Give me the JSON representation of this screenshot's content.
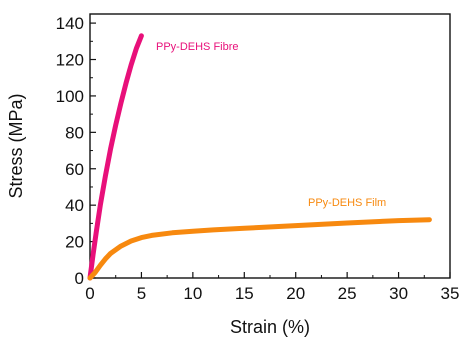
{
  "chart_data": {
    "type": "line",
    "title": "",
    "xlabel": "Strain (%)",
    "ylabel": "Stress (MPa)",
    "xlim": [
      0,
      35
    ],
    "ylim": [
      0,
      145
    ],
    "xticks": [
      0,
      5,
      10,
      15,
      20,
      25,
      30,
      35
    ],
    "yticks": [
      0,
      20,
      40,
      60,
      80,
      100,
      120,
      140
    ],
    "grid": false,
    "legend": "inline labels next to curves",
    "series": [
      {
        "name": "PPy-DEHS Fibre",
        "color": "#e8107a",
        "x": [
          0,
          0.3,
          0.6,
          1.0,
          1.5,
          2.0,
          2.5,
          3.0,
          3.5,
          4.0,
          4.5,
          5.0
        ],
        "y": [
          0,
          13,
          25,
          40,
          56,
          71,
          84,
          96,
          107,
          117,
          126,
          133
        ]
      },
      {
        "name": "PPy-DEHS Film",
        "color": "#f7890f",
        "x": [
          0,
          0.5,
          1,
          1.5,
          2,
          3,
          4,
          5,
          6,
          8,
          10,
          12,
          15,
          20,
          25,
          30,
          33
        ],
        "y": [
          0,
          3,
          7,
          10.5,
          13.5,
          17.5,
          20.3,
          22.2,
          23.4,
          24.8,
          25.7,
          26.4,
          27.3,
          28.8,
          30.2,
          31.5,
          32
        ]
      }
    ]
  }
}
